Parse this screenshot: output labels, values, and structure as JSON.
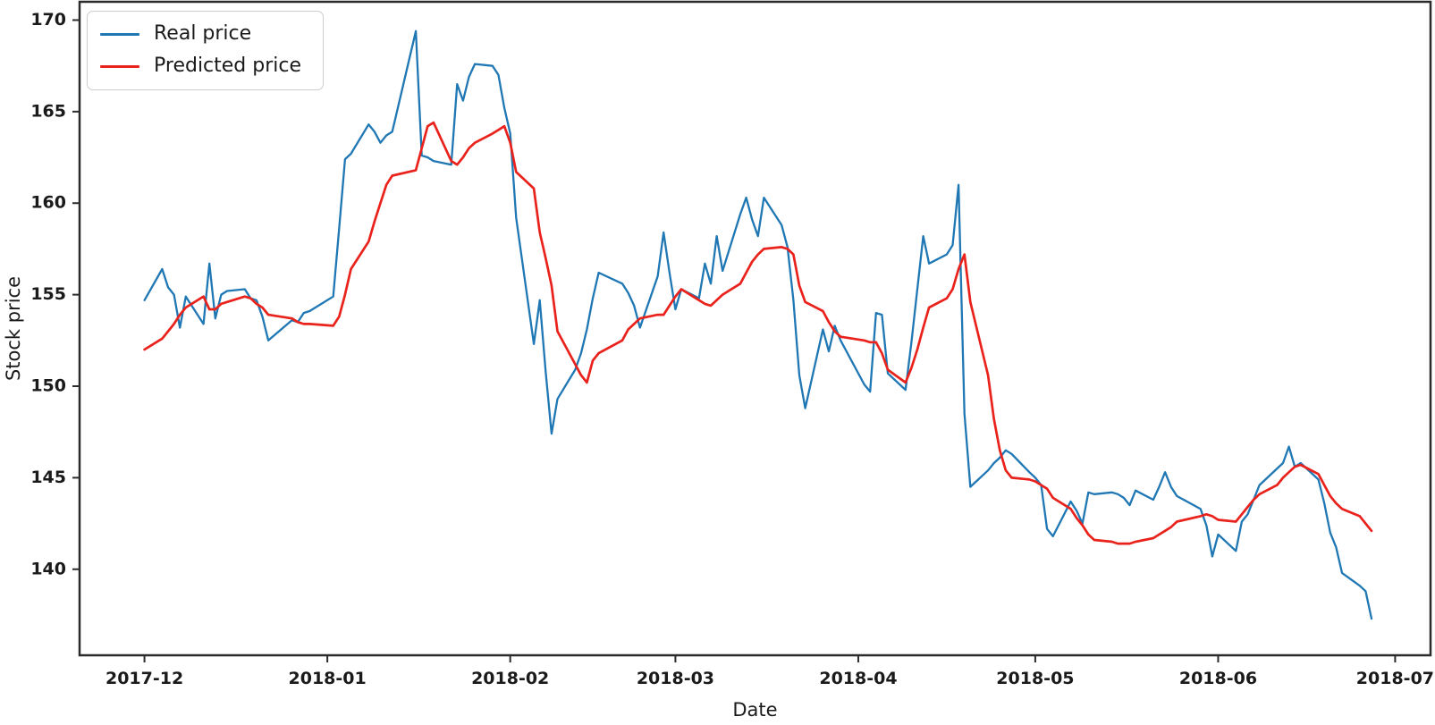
{
  "figure": {
    "xlabel": "Date",
    "ylabel": "Stock price"
  },
  "legend": {
    "items": [
      {
        "label": "Real price",
        "color": "#1f77b4"
      },
      {
        "label": "Predicted price",
        "color": "#e9221c"
      }
    ]
  },
  "chart_data": {
    "type": "line",
    "title": "",
    "xlabel": "Date",
    "ylabel": "Stock price",
    "grid": false,
    "legend_position": "upper left",
    "x_tick_labels": [
      "2017-12",
      "2018-01",
      "2018-02",
      "2018-03",
      "2018-04",
      "2018-05",
      "2018-06",
      "2018-07"
    ],
    "y_ticks": [
      140,
      145,
      150,
      155,
      160,
      165,
      170
    ],
    "ylim": [
      135.3,
      171.0
    ],
    "xlim_dates": [
      "2017-11-20",
      "2018-07-07"
    ],
    "dates": [
      "2017-12-01",
      "2017-12-04",
      "2017-12-05",
      "2017-12-06",
      "2017-12-07",
      "2017-12-08",
      "2017-12-11",
      "2017-12-12",
      "2017-12-13",
      "2017-12-14",
      "2017-12-15",
      "2017-12-18",
      "2017-12-19",
      "2017-12-20",
      "2017-12-21",
      "2017-12-22",
      "2017-12-26",
      "2017-12-27",
      "2017-12-28",
      "2017-12-29",
      "2018-01-02",
      "2018-01-03",
      "2018-01-04",
      "2018-01-05",
      "2018-01-08",
      "2018-01-09",
      "2018-01-10",
      "2018-01-11",
      "2018-01-12",
      "2018-01-16",
      "2018-01-17",
      "2018-01-18",
      "2018-01-19",
      "2018-01-22",
      "2018-01-23",
      "2018-01-24",
      "2018-01-25",
      "2018-01-26",
      "2018-01-29",
      "2018-01-30",
      "2018-01-31",
      "2018-02-01",
      "2018-02-02",
      "2018-02-05",
      "2018-02-06",
      "2018-02-07",
      "2018-02-08",
      "2018-02-09",
      "2018-02-12",
      "2018-02-13",
      "2018-02-14",
      "2018-02-15",
      "2018-02-16",
      "2018-02-20",
      "2018-02-21",
      "2018-02-22",
      "2018-02-23",
      "2018-02-26",
      "2018-02-27",
      "2018-02-28",
      "2018-03-01",
      "2018-03-02",
      "2018-03-05",
      "2018-03-06",
      "2018-03-07",
      "2018-03-08",
      "2018-03-09",
      "2018-03-12",
      "2018-03-13",
      "2018-03-14",
      "2018-03-15",
      "2018-03-16",
      "2018-03-19",
      "2018-03-20",
      "2018-03-21",
      "2018-03-22",
      "2018-03-23",
      "2018-03-26",
      "2018-03-27",
      "2018-03-28",
      "2018-03-29",
      "2018-04-02",
      "2018-04-03",
      "2018-04-04",
      "2018-04-05",
      "2018-04-06",
      "2018-04-09",
      "2018-04-10",
      "2018-04-11",
      "2018-04-12",
      "2018-04-13",
      "2018-04-16",
      "2018-04-17",
      "2018-04-18",
      "2018-04-19",
      "2018-04-20",
      "2018-04-23",
      "2018-04-24",
      "2018-04-25",
      "2018-04-26",
      "2018-04-27",
      "2018-04-30",
      "2018-05-01",
      "2018-05-02",
      "2018-05-03",
      "2018-05-04",
      "2018-05-07",
      "2018-05-08",
      "2018-05-09",
      "2018-05-10",
      "2018-05-11",
      "2018-05-14",
      "2018-05-15",
      "2018-05-16",
      "2018-05-17",
      "2018-05-18",
      "2018-05-21",
      "2018-05-22",
      "2018-05-23",
      "2018-05-24",
      "2018-05-25",
      "2018-05-29",
      "2018-05-30",
      "2018-05-31",
      "2018-06-01",
      "2018-06-04",
      "2018-06-05",
      "2018-06-06",
      "2018-06-07",
      "2018-06-08",
      "2018-06-11",
      "2018-06-12",
      "2018-06-13",
      "2018-06-14",
      "2018-06-15",
      "2018-06-18",
      "2018-06-19",
      "2018-06-20",
      "2018-06-21",
      "2018-06-22",
      "2018-06-25",
      "2018-06-26",
      "2018-06-27"
    ],
    "series": [
      {
        "name": "Real price",
        "color": "#1f77b4",
        "values": [
          154.7,
          156.4,
          155.4,
          155.0,
          153.2,
          154.9,
          153.4,
          156.7,
          153.7,
          155.0,
          155.2,
          155.3,
          154.8,
          154.7,
          153.8,
          152.5,
          153.6,
          153.5,
          154.0,
          154.1,
          154.9,
          158.6,
          162.4,
          162.7,
          164.3,
          163.9,
          163.3,
          163.7,
          163.9,
          169.4,
          162.6,
          162.5,
          162.3,
          162.1,
          166.5,
          165.6,
          166.9,
          167.6,
          167.5,
          167.0,
          165.2,
          163.8,
          159.2,
          152.3,
          154.7,
          150.8,
          147.4,
          149.3,
          150.9,
          151.8,
          153.1,
          154.8,
          156.2,
          155.6,
          155.1,
          154.4,
          153.2,
          156.0,
          158.4,
          156.2,
          154.2,
          155.3,
          154.8,
          156.7,
          155.6,
          158.2,
          156.3,
          159.4,
          160.3,
          159.1,
          158.2,
          160.3,
          158.8,
          157.6,
          154.7,
          150.6,
          148.8,
          153.1,
          151.9,
          153.3,
          152.5,
          150.1,
          149.7,
          154.0,
          153.9,
          150.7,
          149.8,
          152.4,
          155.3,
          158.2,
          156.7,
          157.2,
          157.7,
          161.0,
          148.5,
          144.5,
          145.4,
          145.8,
          146.1,
          146.5,
          146.3,
          145.3,
          145.0,
          144.6,
          142.2,
          141.8,
          143.7,
          143.2,
          142.5,
          144.2,
          144.1,
          144.2,
          144.1,
          143.9,
          143.5,
          144.3,
          143.8,
          144.5,
          145.3,
          144.5,
          144.0,
          143.3,
          142.4,
          140.7,
          141.9,
          141.0,
          142.6,
          143.0,
          143.8,
          144.6,
          145.5,
          145.8,
          146.7,
          145.6,
          145.8,
          144.9,
          143.6,
          142.0,
          141.2,
          139.8,
          139.1,
          138.8,
          137.3
        ]
      },
      {
        "name": "Predicted price",
        "color": "#e9221c",
        "values": [
          152.0,
          152.6,
          153.0,
          153.4,
          153.9,
          154.3,
          154.9,
          154.2,
          154.2,
          154.5,
          154.6,
          154.9,
          154.8,
          154.5,
          154.3,
          153.9,
          153.7,
          153.5,
          153.4,
          153.4,
          153.3,
          153.8,
          155.0,
          156.4,
          157.9,
          159.0,
          160.0,
          161.0,
          161.5,
          161.8,
          163.0,
          164.2,
          164.4,
          162.3,
          162.1,
          162.5,
          163.0,
          163.3,
          163.8,
          164.0,
          164.2,
          163.3,
          161.7,
          160.8,
          158.4,
          157.0,
          155.5,
          153.0,
          151.2,
          150.6,
          150.2,
          151.4,
          151.8,
          152.5,
          153.1,
          153.4,
          153.7,
          153.9,
          153.9,
          154.4,
          154.9,
          155.3,
          154.7,
          154.5,
          154.4,
          154.7,
          155.0,
          155.6,
          156.2,
          156.8,
          157.2,
          157.5,
          157.6,
          157.5,
          157.2,
          155.5,
          154.6,
          154.1,
          153.5,
          153.0,
          152.7,
          152.5,
          152.4,
          152.4,
          151.8,
          150.9,
          150.2,
          151.0,
          152.0,
          153.2,
          154.3,
          154.8,
          155.3,
          156.4,
          157.2,
          154.6,
          150.6,
          148.2,
          146.5,
          145.4,
          145.0,
          144.9,
          144.8,
          144.6,
          144.4,
          143.9,
          143.3,
          142.8,
          142.4,
          141.9,
          141.6,
          141.5,
          141.4,
          141.4,
          141.4,
          141.5,
          141.7,
          141.9,
          142.1,
          142.3,
          142.6,
          142.9,
          143.0,
          142.9,
          142.7,
          142.6,
          143.0,
          143.4,
          143.8,
          144.1,
          144.6,
          145.0,
          145.3,
          145.6,
          145.7,
          145.2,
          144.6,
          144.0,
          143.6,
          143.3,
          142.9,
          142.5,
          142.1
        ]
      }
    ]
  }
}
